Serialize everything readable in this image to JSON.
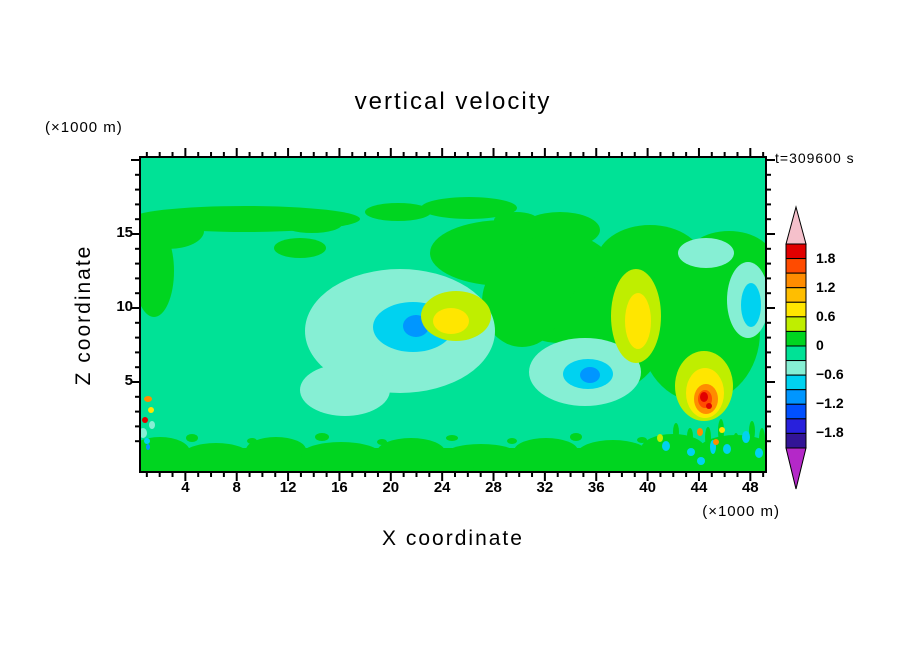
{
  "title": "vertical velocity",
  "time_label": "t=309600 s",
  "axes": {
    "x": {
      "label": "X coordinate",
      "unit_label": "(×1000 m)",
      "tick_values": [
        4,
        8,
        12,
        16,
        20,
        24,
        28,
        32,
        36,
        40,
        44,
        48
      ],
      "tick_labels": [
        "4",
        "8",
        "12",
        "16",
        "20",
        "24",
        "28",
        "32",
        "36",
        "40",
        "44",
        "48"
      ]
    },
    "y": {
      "label": "Z coordinate",
      "unit_label": "(×1000 m)",
      "tick_values": [
        5,
        10,
        15
      ],
      "tick_labels": [
        "5",
        "10",
        "15"
      ]
    }
  },
  "colorbar": {
    "label_values": [
      1.8,
      1.2,
      0.6,
      0,
      -0.6,
      -1.2,
      -1.8
    ],
    "labels": [
      "1.8",
      "1.2",
      "0.6",
      "0",
      "−0.6",
      "−1.2",
      "−1.8"
    ],
    "segment_colors_top_to_bottom": [
      "#E10000",
      "#FF4B00",
      "#FF8C00",
      "#FFBE00",
      "#FFE600",
      "#BFEE00",
      "#00D520",
      "#00E296",
      "#86EFD4",
      "#00D2F0",
      "#0096FF",
      "#0050FF",
      "#2820DC",
      "#321496"
    ],
    "over_color": "#F5C0CB",
    "under_color": "#B428C8",
    "levels": [
      -2.1,
      -1.8,
      -1.5,
      -1.2,
      -0.9,
      -0.6,
      -0.3,
      0,
      0.3,
      0.6,
      0.9,
      1.2,
      1.5,
      1.8,
      2.1
    ]
  },
  "chart_data": {
    "type": "heatmap",
    "variable": "vertical velocity",
    "title": "vertical velocity",
    "time": "t=309600 s",
    "xlabel": "X coordinate",
    "ylabel": "Z coordinate",
    "x_unit": "(×1000 m)",
    "y_unit": "(×1000 m)",
    "xlim": [
      0,
      49
    ],
    "ylim": [
      0,
      20
    ],
    "contour_interval": 0.3,
    "levels": [
      -2.1,
      -1.8,
      -1.5,
      -1.2,
      -0.9,
      -0.6,
      -0.3,
      0,
      0.3,
      0.6,
      0.9,
      1.2,
      1.5,
      1.8,
      2.1
    ],
    "background_value_band": [
      -0.3,
      0
    ],
    "features": [
      {
        "x": 22,
        "z": 8.7,
        "value": -1.0,
        "description": "downdraft core, blue spot inside cyan patch"
      },
      {
        "x": 35.5,
        "z": 5.5,
        "value": -1.0,
        "description": "second downdraft core, blue spot inside cyan patch"
      },
      {
        "x": 24.7,
        "z": 9.1,
        "value": 0.7,
        "description": "updraft maximum, yellow patch ringed by yellow-green"
      },
      {
        "x": 39.2,
        "z": 9.2,
        "value": 0.7,
        "description": "elongated vertical yellow updraft band"
      },
      {
        "x": 44.5,
        "z": 4.3,
        "value": 2.0,
        "description": "strong updraft with orange/red core near surface"
      },
      {
        "x": 44.5,
        "z": 13.5,
        "value": -0.5,
        "description": "cyan downdraft patches in upper-right green region"
      },
      {
        "x": 27,
        "z": 12.5,
        "value": 0.15,
        "description": "broad weakly positive green arc through centre-right"
      },
      {
        "x": 8,
        "z": 17,
        "value": 0.15,
        "description": "thin green strip of weak updraft near domain top"
      },
      {
        "x": 24,
        "z": 1,
        "value": 0.15,
        "description": "noisy shallow green layer of weak updrafts along surface"
      },
      {
        "x": 0.8,
        "z": 3.5,
        "value": 1.0,
        "description": "small multicoloured speckles at left boundary"
      },
      {
        "x": 45,
        "z": 2.5,
        "value": -0.6,
        "description": "noisy speckled green/cyan region near lower-right boundary"
      }
    ]
  }
}
